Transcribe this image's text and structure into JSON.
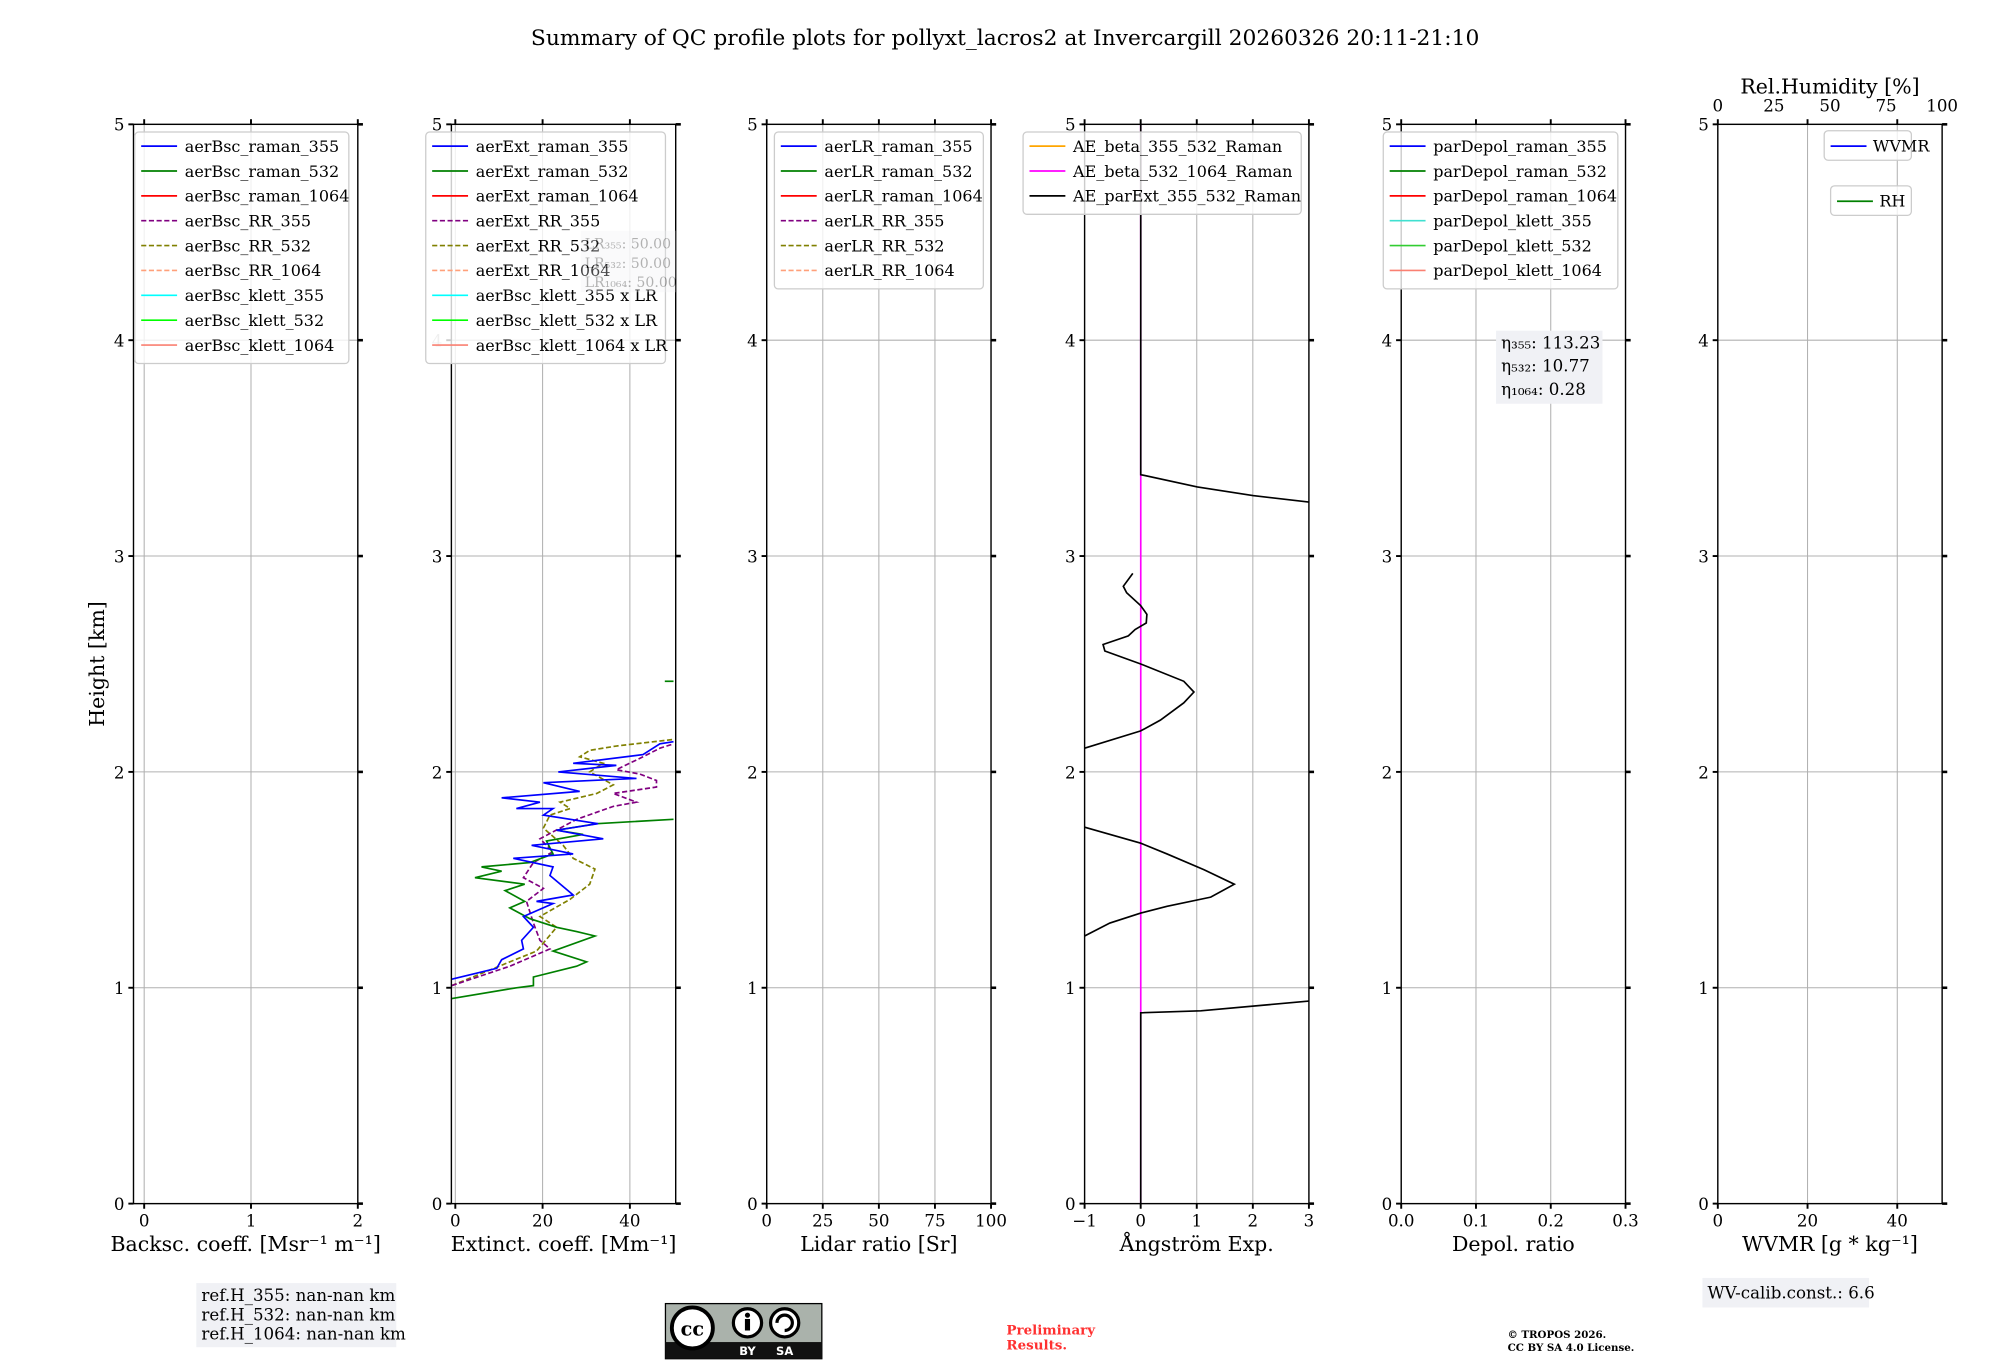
{
  "title": "Summary of QC profile plots for pollyxt_lacros2 at Invercargill 20260326 20:11-21:10",
  "ylabel": "Height [km]",
  "y_ticks": [
    "0",
    "1",
    "2",
    "3",
    "4",
    "5"
  ],
  "lr_box": {
    "lines": [
      "LR₃₅₅: 50.00",
      "LR₅₃₂: 50.00",
      "LR₁₀₆₄: 50.00"
    ]
  },
  "eta_box": {
    "line1": "η₃₅₅: 113.23",
    "line2": "η₅₃₂: 10.77",
    "line3": "η₁₀₆₄: 0.28"
  },
  "refh_box": {
    "line1": "ref.H_355: nan-nan km",
    "line2": "ref.H_532: nan-nan km",
    "line3": "ref.H_1064: nan-nan km"
  },
  "wv_box": {
    "text": "WV-calib.const.: 6.6"
  },
  "license_logo": {
    "cc": "cc",
    "by": "BY",
    "sa": "SA"
  },
  "preliminary": {
    "line1": "Preliminary",
    "line2": "Results."
  },
  "copyright": {
    "line1": "© TROPOS 2026.",
    "line2": "CC BY SA 4.0 License."
  },
  "chart_data": [
    {
      "type": "line",
      "name": "backscatter",
      "xlabel": "Backsc. coeff. [Msr⁻¹ m⁻¹]",
      "ylabel": "Height [km]",
      "xlim": [
        -0.1,
        2.0
      ],
      "ylim": [
        0,
        5
      ],
      "xticks": [
        0,
        1,
        2
      ],
      "xtick_labels": [
        "0",
        "1",
        "2"
      ],
      "grid": true,
      "legend_position": "top-left",
      "legend": [
        {
          "label": "aerBsc_raman_355",
          "color": "#0000ff",
          "dash": false
        },
        {
          "label": "aerBsc_raman_532",
          "color": "#008000",
          "dash": false
        },
        {
          "label": "aerBsc_raman_1064",
          "color": "#ff0000",
          "dash": false
        },
        {
          "label": "aerBsc_RR_355",
          "color": "#800080",
          "dash": true
        },
        {
          "label": "aerBsc_RR_532",
          "color": "#808000",
          "dash": true
        },
        {
          "label": "aerBsc_RR_1064",
          "color": "#ffa07a",
          "dash": true
        },
        {
          "label": "aerBsc_klett_355",
          "color": "#00ffff",
          "dash": false
        },
        {
          "label": "aerBsc_klett_532",
          "color": "#00ff00",
          "dash": false
        },
        {
          "label": "aerBsc_klett_1064",
          "color": "#fa8072",
          "dash": false
        }
      ],
      "series": []
    },
    {
      "type": "line",
      "name": "extinction",
      "xlabel": "Extinct. coeff. [Mm⁻¹]",
      "ylabel": "",
      "xlim": [
        -0.9,
        50.5
      ],
      "ylim": [
        0,
        5
      ],
      "xticks": [
        0,
        20,
        40
      ],
      "xtick_labels": [
        "0",
        "20",
        "40"
      ],
      "grid": true,
      "legend_position": "top-left",
      "legend": [
        {
          "label": "aerExt_raman_355",
          "color": "#0000ff",
          "dash": false
        },
        {
          "label": "aerExt_raman_532",
          "color": "#008000",
          "dash": false
        },
        {
          "label": "aerExt_raman_1064",
          "color": "#ff0000",
          "dash": false
        },
        {
          "label": "aerExt_RR_355",
          "color": "#800080",
          "dash": true
        },
        {
          "label": "aerExt_RR_532",
          "color": "#808000",
          "dash": true
        },
        {
          "label": "aerExt_RR_1064",
          "color": "#ffa07a",
          "dash": true
        },
        {
          "label": "aerBsc_klett_355 x LR",
          "color": "#00ffff",
          "dash": false
        },
        {
          "label": "aerBsc_klett_532 x LR",
          "color": "#00ff00",
          "dash": false
        },
        {
          "label": "aerBsc_klett_1064 x LR",
          "color": "#fa8072",
          "dash": false
        }
      ],
      "series": [
        {
          "name": "aerExt_RR_532",
          "color": "#808000",
          "dash": true,
          "points": [
            [
              -0.8,
              1.01
            ],
            [
              12.5,
              1.12
            ],
            [
              18.6,
              1.17
            ],
            [
              23.2,
              1.28
            ],
            [
              19.4,
              1.33
            ],
            [
              26.3,
              1.41
            ],
            [
              30.8,
              1.48
            ],
            [
              32,
              1.55
            ],
            [
              27,
              1.6
            ],
            [
              24.7,
              1.66
            ],
            [
              20.2,
              1.74
            ],
            [
              21.7,
              1.8
            ],
            [
              26.3,
              1.83
            ],
            [
              24,
              1.86
            ],
            [
              32.4,
              1.9
            ],
            [
              36.2,
              1.94
            ],
            [
              30.8,
              2.0
            ],
            [
              33.9,
              2.04
            ],
            [
              28.5,
              2.07
            ],
            [
              30.8,
              2.1
            ],
            [
              36.9,
              2.12
            ],
            [
              50,
              2.15
            ]
          ]
        },
        {
          "name": "aerExt_RR_355",
          "color": "#800080",
          "dash": true,
          "points": [
            [
              -0.8,
              1.01
            ],
            [
              12.5,
              1.1
            ],
            [
              21.7,
              1.18
            ],
            [
              19.4,
              1.22
            ],
            [
              17.9,
              1.3
            ],
            [
              16.3,
              1.4
            ],
            [
              20.2,
              1.46
            ],
            [
              15.6,
              1.51
            ],
            [
              17.9,
              1.58
            ],
            [
              22.4,
              1.63
            ],
            [
              19.4,
              1.69
            ],
            [
              27.8,
              1.78
            ],
            [
              36.2,
              1.84
            ],
            [
              41.5,
              1.86
            ],
            [
              36.2,
              1.9
            ],
            [
              46.1,
              1.93
            ],
            [
              46.1,
              1.96
            ],
            [
              42.3,
              1.99
            ],
            [
              36.9,
              2.01
            ],
            [
              43,
              2.07
            ],
            [
              46.9,
              2.11
            ],
            [
              50,
              2.13
            ]
          ]
        },
        {
          "name": "aerExt_raman_532",
          "color": "#008000",
          "dash": false,
          "points": [
            [
              -0.8,
              0.95
            ],
            [
              14,
              1.0
            ],
            [
              17.9,
              1.01
            ],
            [
              17.9,
              1.05
            ],
            [
              27.8,
              1.1
            ],
            [
              30.1,
              1.12
            ],
            [
              22.4,
              1.17
            ],
            [
              32,
              1.24
            ],
            [
              27.8,
              1.26
            ],
            [
              23.2,
              1.28
            ],
            [
              17.1,
              1.32
            ],
            [
              12.5,
              1.37
            ],
            [
              15.9,
              1.4
            ],
            [
              11.4,
              1.45
            ],
            [
              15.9,
              1.48
            ],
            [
              4.5,
              1.51
            ],
            [
              10.6,
              1.54
            ],
            [
              6,
              1.56
            ],
            [
              17.1,
              1.58
            ],
            [
              22.4,
              1.62
            ],
            [
              20.9,
              1.68
            ],
            [
              29.3,
              1.71
            ],
            [
              23.2,
              1.73
            ],
            [
              32.4,
              1.76
            ],
            [
              50,
              1.78
            ]
          ]
        },
        {
          "name": "aerExt_raman_532_upper",
          "color": "#008000",
          "dash": false,
          "points": [
            [
              48,
              2.42
            ],
            [
              50,
              2.42
            ]
          ]
        },
        {
          "name": "aerExt_raman_355",
          "color": "#0000ff",
          "dash": false,
          "points": [
            [
              -0.8,
              1.04
            ],
            [
              9.5,
              1.09
            ],
            [
              10.6,
              1.13
            ],
            [
              15.6,
              1.18
            ],
            [
              15.2,
              1.22
            ],
            [
              17.9,
              1.28
            ],
            [
              15.6,
              1.33
            ],
            [
              22.4,
              1.39
            ],
            [
              18.6,
              1.4
            ],
            [
              27,
              1.43
            ],
            [
              21.7,
              1.52
            ],
            [
              22.4,
              1.56
            ],
            [
              13.3,
              1.6
            ],
            [
              27,
              1.62
            ],
            [
              17.5,
              1.66
            ],
            [
              33.9,
              1.69
            ],
            [
              23.2,
              1.73
            ],
            [
              32.7,
              1.76
            ],
            [
              20.2,
              1.8
            ],
            [
              22.4,
              1.83
            ],
            [
              14,
              1.83
            ],
            [
              19.4,
              1.86
            ],
            [
              10.6,
              1.88
            ],
            [
              28.5,
              1.91
            ],
            [
              20.2,
              1.95
            ],
            [
              41.5,
              1.97
            ],
            [
              23.6,
              2.0
            ],
            [
              36.9,
              2.03
            ],
            [
              27,
              2.04
            ],
            [
              43,
              2.08
            ],
            [
              46.9,
              2.13
            ],
            [
              50,
              2.14
            ]
          ]
        }
      ]
    },
    {
      "type": "line",
      "name": "lidar-ratio",
      "xlabel": "Lidar ratio [Sr]",
      "ylabel": "",
      "xlim": [
        0,
        100
      ],
      "ylim": [
        0,
        5
      ],
      "xticks": [
        0,
        25,
        50,
        75,
        100
      ],
      "xtick_labels": [
        "0",
        "25",
        "50",
        "75",
        "100"
      ],
      "grid": true,
      "legend_position": "top-left",
      "legend": [
        {
          "label": "aerLR_raman_355",
          "color": "#0000ff",
          "dash": false
        },
        {
          "label": "aerLR_raman_532",
          "color": "#008000",
          "dash": false
        },
        {
          "label": "aerLR_raman_1064",
          "color": "#ff0000",
          "dash": false
        },
        {
          "label": "aerLR_RR_355",
          "color": "#800080",
          "dash": true
        },
        {
          "label": "aerLR_RR_532",
          "color": "#808000",
          "dash": true
        },
        {
          "label": "aerLR_RR_1064",
          "color": "#ffa07a",
          "dash": true
        }
      ],
      "series": []
    },
    {
      "type": "line",
      "name": "angstrom",
      "xlabel": "Ångström Exp.",
      "ylabel": "",
      "xlim": [
        -1,
        3
      ],
      "ylim": [
        0,
        5
      ],
      "xticks": [
        -1,
        0,
        1,
        2,
        3
      ],
      "xtick_labels": [
        "−1",
        "0",
        "1",
        "2",
        "3"
      ],
      "grid": true,
      "legend_position": "top-left",
      "legend": [
        {
          "label": "AE_beta_355_532_Raman",
          "color": "#ffa500",
          "dash": false
        },
        {
          "label": "AE_beta_532_1064_Raman",
          "color": "#ff00ff",
          "dash": false
        },
        {
          "label": "AE_parExt_355_532_Raman",
          "color": "#000000",
          "dash": false
        }
      ],
      "series": [
        {
          "name": "AE_beta_532_1064_Raman",
          "color": "#ff00ff",
          "dash": false,
          "points": [
            [
              0,
              0
            ],
            [
              0,
              5
            ]
          ]
        },
        {
          "name": "AE_parExt_355_532_Raman_top",
          "color": "#000000",
          "dash": false,
          "points": [
            [
              0,
              5
            ],
            [
              0,
              3.377
            ],
            [
              1.01,
              3.32
            ],
            [
              2.0,
              3.28
            ],
            [
              3,
              3.25
            ]
          ]
        },
        {
          "name": "AE_parExt_355_532_Raman_mid",
          "color": "#000000",
          "dash": false,
          "points": [
            [
              -0.14,
              2.92
            ],
            [
              -0.31,
              2.86
            ],
            [
              -0.25,
              2.83
            ],
            [
              0,
              2.77
            ],
            [
              0.11,
              2.73
            ],
            [
              0.1,
              2.69
            ],
            [
              -0.1,
              2.66
            ],
            [
              -0.22,
              2.63
            ],
            [
              -0.67,
              2.59
            ],
            [
              -0.64,
              2.56
            ],
            [
              0,
              2.5
            ],
            [
              0.77,
              2.42
            ],
            [
              0.95,
              2.37
            ],
            [
              0.77,
              2.32
            ],
            [
              0.35,
              2.24
            ],
            [
              0,
              2.19
            ],
            [
              -1,
              2.11
            ]
          ]
        },
        {
          "name": "AE_parExt_355_532_Raman_low",
          "color": "#000000",
          "dash": false,
          "points": [
            [
              -1,
              1.744
            ],
            [
              0,
              1.67
            ],
            [
              0.47,
              1.62
            ],
            [
              1.13,
              1.547
            ],
            [
              1.67,
              1.48
            ],
            [
              1.25,
              1.42
            ],
            [
              0.47,
              1.377
            ],
            [
              0,
              1.346
            ],
            [
              -0.55,
              1.3
            ],
            [
              -1,
              1.24
            ]
          ]
        },
        {
          "name": "AE_parExt_355_532_Raman_bottom",
          "color": "#000000",
          "dash": false,
          "points": [
            [
              0,
              0
            ],
            [
              0,
              0.884
            ],
            [
              1.07,
              0.893
            ],
            [
              3,
              0.938
            ]
          ]
        }
      ]
    },
    {
      "type": "line",
      "name": "depolarization",
      "xlabel": "Depol. ratio",
      "ylabel": "",
      "xlim": [
        0,
        0.3
      ],
      "ylim": [
        0,
        5
      ],
      "xticks": [
        0,
        0.1,
        0.2,
        0.3
      ],
      "xtick_labels": [
        "0.0",
        "0.1",
        "0.2",
        "0.3"
      ],
      "grid": true,
      "legend_position": "top-left",
      "legend": [
        {
          "label": "parDepol_raman_355",
          "color": "#0000ff",
          "dash": false
        },
        {
          "label": "parDepol_raman_532",
          "color": "#008000",
          "dash": false
        },
        {
          "label": "parDepol_raman_1064",
          "color": "#ff0000",
          "dash": false
        },
        {
          "label": "parDepol_klett_355",
          "color": "#40e0d0",
          "dash": false
        },
        {
          "label": "parDepol_klett_532",
          "color": "#32cd32",
          "dash": false
        },
        {
          "label": "parDepol_klett_1064",
          "color": "#fa8072",
          "dash": false
        }
      ],
      "series": []
    },
    {
      "type": "line",
      "name": "water-vapor",
      "xlabel": "WVMR [g * kg⁻¹]",
      "ylabel": "",
      "xlim": [
        0,
        50
      ],
      "ylim": [
        0,
        5
      ],
      "xticks": [
        0,
        20,
        40
      ],
      "xtick_labels": [
        "0",
        "20",
        "40"
      ],
      "grid": true,
      "top_axis": {
        "label": "Rel.Humidity [%]",
        "xlim": [
          0,
          100
        ],
        "xticks": [
          0,
          25,
          50,
          75,
          100
        ],
        "xtick_labels": [
          "0",
          "25",
          "50",
          "75",
          "100"
        ]
      },
      "legend_position": "top-right",
      "legend": [
        {
          "label": "WVMR",
          "color": "#0000ff",
          "dash": false
        },
        {
          "label": "RH",
          "color": "#008000",
          "dash": false
        }
      ],
      "series": []
    }
  ]
}
